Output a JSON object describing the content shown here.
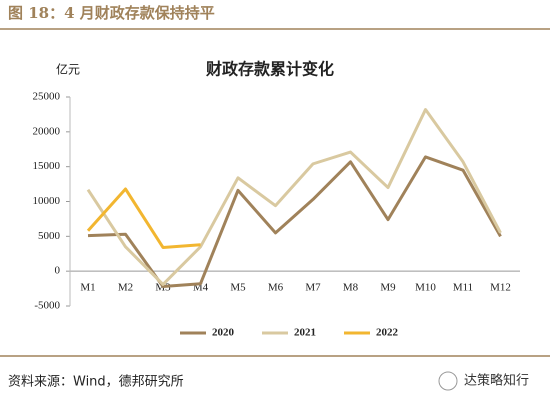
{
  "header": {
    "title": "图 18：4 月财政存款保持持平"
  },
  "chart_data": {
    "type": "line",
    "title": "财政存款累计变化",
    "y_label": "亿元",
    "categories": [
      "M1",
      "M2",
      "M3",
      "M4",
      "M5",
      "M6",
      "M7",
      "M8",
      "M9",
      "M10",
      "M11",
      "M12"
    ],
    "series": [
      {
        "name": "2020",
        "color": "#a0825a",
        "values": [
          5100,
          5300,
          -2200,
          -1800,
          11600,
          5500,
          10300,
          15700,
          7400,
          16400,
          14500,
          5000
        ]
      },
      {
        "name": "2021",
        "color": "#d9c9a0",
        "values": [
          11700,
          3500,
          -1900,
          3500,
          13400,
          9400,
          15400,
          17100,
          12000,
          23200,
          15700,
          5500
        ]
      },
      {
        "name": "2022",
        "color": "#f2b630",
        "values": [
          5800,
          11800,
          3400,
          3800,
          null,
          null,
          null,
          null,
          null,
          null,
          null,
          null
        ]
      }
    ],
    "ylim": [
      -5000,
      25000
    ],
    "yticks": [
      -5000,
      0,
      5000,
      10000,
      15000,
      20000,
      25000
    ],
    "grid": false,
    "legend": "bottom"
  },
  "footer": {
    "source": "资料来源：Wind，德邦研究所",
    "watermark": "达策略知行"
  }
}
